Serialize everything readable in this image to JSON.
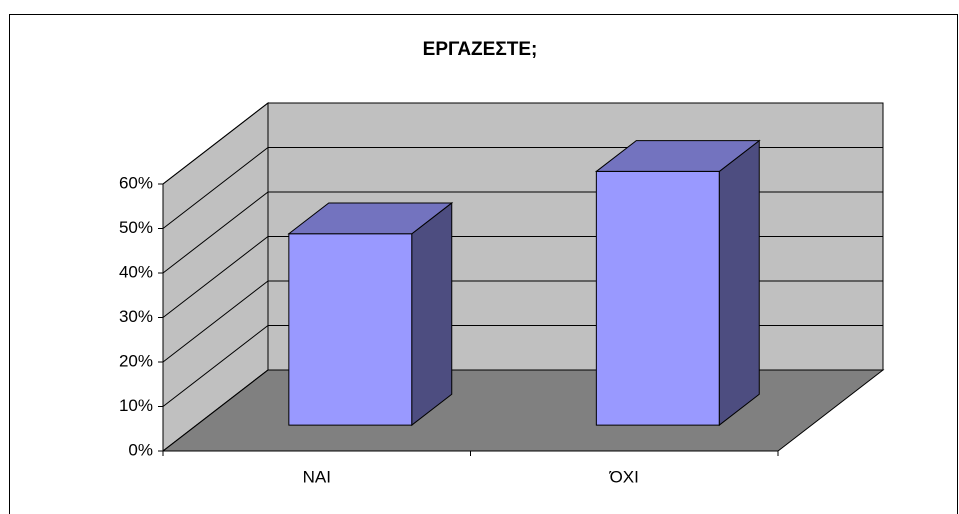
{
  "chart_data": {
    "type": "bar3d",
    "title": "ΕΡΓΑΖΕΣΤΕ;",
    "categories": [
      "ΝΑΙ",
      "ΌΧΙ"
    ],
    "values": [
      43,
      57
    ],
    "color": "#9999ff",
    "ylim": [
      0,
      60
    ],
    "yticks": [
      {
        "value": 0,
        "label": "0%"
      },
      {
        "value": 10,
        "label": "10%"
      },
      {
        "value": 20,
        "label": "20%"
      },
      {
        "value": 30,
        "label": "30%"
      },
      {
        "value": 40,
        "label": "40%"
      },
      {
        "value": 50,
        "label": "50%"
      },
      {
        "value": 60,
        "label": "60%"
      }
    ],
    "grid": true
  }
}
